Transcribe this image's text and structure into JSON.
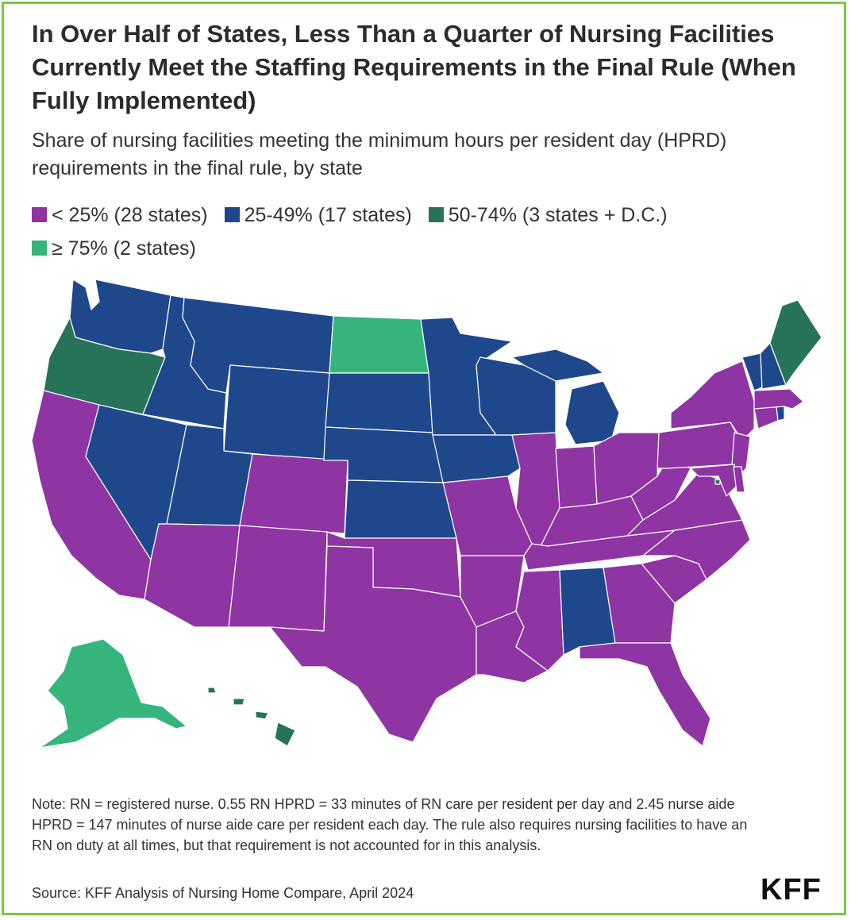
{
  "title": "In Over Half of States, Less Than a Quarter of Nursing Facilities Currently Meet the Staffing Requirements in the Final Rule (When Fully Implemented)",
  "subtitle": "Share of nursing facilities meeting the minimum hours per resident day (HPRD) requirements in the final rule, by state",
  "legend": [
    {
      "label": "< 25% (28 states)",
      "color": "#8e35a3"
    },
    {
      "label": "25-49% (17 states)",
      "color": "#1f488c"
    },
    {
      "label": "50-74% (3 states + D.C.)",
      "color": "#27735a"
    },
    {
      "label": "≥ 75% (2 states)",
      "color": "#35b57c"
    }
  ],
  "map_data": {
    "type": "choropleth",
    "categories": {
      "lt25": [
        "CA",
        "AZ",
        "CO",
        "NM",
        "TX",
        "OK",
        "MO",
        "AR",
        "LA",
        "MS",
        "TN",
        "KY",
        "IL",
        "IN",
        "OH",
        "WV",
        "VA",
        "NC",
        "SC",
        "GA",
        "FL",
        "PA",
        "NY",
        "NJ",
        "DE",
        "MD",
        "CT",
        "MA"
      ],
      "25to49": [
        "WA",
        "ID",
        "MT",
        "WY",
        "NV",
        "UT",
        "SD",
        "NE",
        "KS",
        "MN",
        "IA",
        "WI",
        "MI",
        "AL",
        "VT",
        "NH",
        "RI"
      ],
      "50to74": [
        "OR",
        "ME",
        "HI",
        "DC"
      ],
      "gte75": [
        "ND",
        "AK"
      ]
    }
  },
  "note": "Note: RN = registered nurse. 0.55 RN HPRD = 33 minutes of RN care per resident per day and 2.45 nurse aide HPRD = 147 minutes of nurse aide care per resident each day. The rule also requires nursing facilities to have an RN on duty at all times, but that requirement is not accounted for in this analysis.",
  "source": "Source: KFF Analysis of Nursing Home Compare, April 2024",
  "logo": "KFF"
}
